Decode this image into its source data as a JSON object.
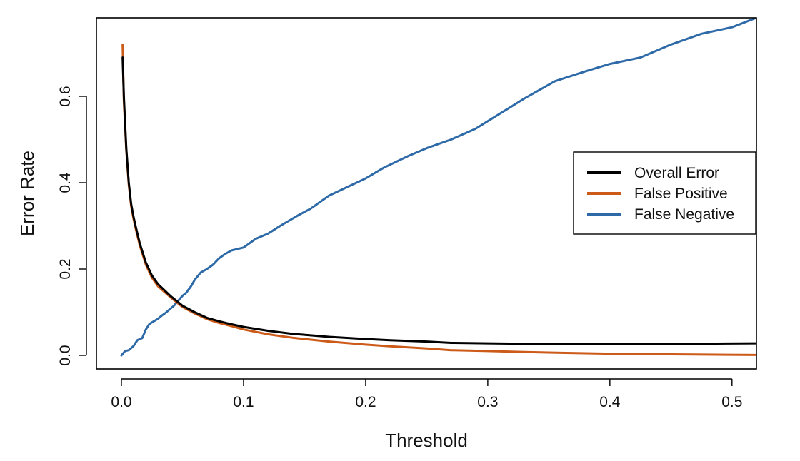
{
  "chart_data": {
    "type": "line",
    "title": "",
    "xlabel": "Threshold",
    "ylabel": "Error Rate",
    "xlim": [
      0.0,
      0.52
    ],
    "ylim": [
      0.0,
      0.78
    ],
    "xticks": [
      0.0,
      0.1,
      0.2,
      0.3,
      0.4,
      0.5
    ],
    "xtick_labels": [
      "0.0",
      "0.1",
      "0.2",
      "0.3",
      "0.4",
      "0.5"
    ],
    "yticks": [
      0.0,
      0.2,
      0.4,
      0.6
    ],
    "ytick_labels": [
      "0.0",
      "0.2",
      "0.4",
      "0.6"
    ],
    "grid": false,
    "legend_position": "right",
    "series": [
      {
        "name": "Overall Error",
        "color": "#000000",
        "x": [
          0.001,
          0.002,
          0.004,
          0.006,
          0.008,
          0.01,
          0.012,
          0.015,
          0.02,
          0.025,
          0.03,
          0.04,
          0.05,
          0.06,
          0.07,
          0.08,
          0.09,
          0.1,
          0.12,
          0.14,
          0.17,
          0.2,
          0.22,
          0.25,
          0.27,
          0.3,
          0.33,
          0.36,
          0.4,
          0.43,
          0.47,
          0.52
        ],
        "y": [
          0.69,
          0.6,
          0.48,
          0.4,
          0.35,
          0.32,
          0.295,
          0.26,
          0.215,
          0.185,
          0.165,
          0.138,
          0.115,
          0.1,
          0.087,
          0.079,
          0.072,
          0.066,
          0.057,
          0.05,
          0.043,
          0.038,
          0.035,
          0.032,
          0.029,
          0.028,
          0.027,
          0.027,
          0.026,
          0.026,
          0.027,
          0.028
        ]
      },
      {
        "name": "False Positive",
        "color": "#cc5a19",
        "x": [
          0.001,
          0.002,
          0.004,
          0.006,
          0.008,
          0.01,
          0.012,
          0.015,
          0.02,
          0.025,
          0.03,
          0.04,
          0.05,
          0.06,
          0.07,
          0.08,
          0.09,
          0.1,
          0.12,
          0.14,
          0.17,
          0.2,
          0.22,
          0.25,
          0.27,
          0.3,
          0.33,
          0.36,
          0.4,
          0.43,
          0.47,
          0.52
        ],
        "y": [
          0.72,
          0.59,
          0.475,
          0.395,
          0.345,
          0.315,
          0.29,
          0.255,
          0.21,
          0.18,
          0.16,
          0.135,
          0.112,
          0.097,
          0.084,
          0.075,
          0.068,
          0.06,
          0.049,
          0.041,
          0.032,
          0.025,
          0.021,
          0.016,
          0.012,
          0.01,
          0.008,
          0.006,
          0.004,
          0.003,
          0.002,
          0.001
        ]
      },
      {
        "name": "False Negative",
        "color": "#2e6aa8",
        "x": [
          0.0,
          0.003,
          0.006,
          0.01,
          0.013,
          0.017,
          0.02,
          0.023,
          0.026,
          0.03,
          0.033,
          0.036,
          0.04,
          0.043,
          0.046,
          0.05,
          0.053,
          0.057,
          0.06,
          0.065,
          0.07,
          0.075,
          0.08,
          0.085,
          0.09,
          0.1,
          0.11,
          0.12,
          0.13,
          0.145,
          0.155,
          0.17,
          0.185,
          0.2,
          0.215,
          0.235,
          0.25,
          0.27,
          0.29,
          0.31,
          0.33,
          0.355,
          0.38,
          0.4,
          0.425,
          0.45,
          0.475,
          0.5,
          0.52
        ],
        "y": [
          0.0,
          0.01,
          0.012,
          0.022,
          0.035,
          0.04,
          0.06,
          0.073,
          0.078,
          0.085,
          0.092,
          0.098,
          0.108,
          0.115,
          0.125,
          0.138,
          0.145,
          0.16,
          0.175,
          0.192,
          0.2,
          0.21,
          0.225,
          0.235,
          0.243,
          0.25,
          0.27,
          0.282,
          0.3,
          0.325,
          0.34,
          0.37,
          0.39,
          0.41,
          0.435,
          0.462,
          0.48,
          0.5,
          0.525,
          0.56,
          0.595,
          0.635,
          0.658,
          0.675,
          0.69,
          0.72,
          0.745,
          0.76,
          0.782
        ]
      }
    ]
  }
}
